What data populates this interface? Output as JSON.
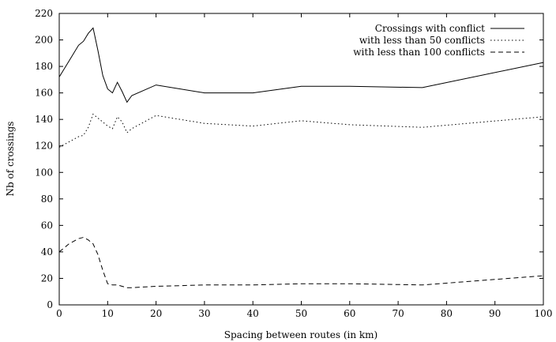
{
  "chart_data": {
    "type": "line",
    "xlabel": "Spacing between routes (in km)",
    "ylabel": "Nb of crossings",
    "xlim": [
      0,
      100
    ],
    "ylim": [
      0,
      220
    ],
    "xticks": [
      0,
      10,
      20,
      30,
      40,
      50,
      60,
      70,
      80,
      90,
      100
    ],
    "yticks": [
      0,
      20,
      40,
      60,
      80,
      100,
      120,
      140,
      160,
      180,
      200,
      220
    ],
    "grid": false,
    "legend_position": "top-right",
    "series": [
      {
        "name": "Crossings with conflict",
        "style": "solid",
        "x": [
          0,
          2,
          4,
          5,
          6,
          7,
          8,
          9,
          10,
          11,
          12,
          13,
          14,
          15,
          20,
          30,
          40,
          50,
          60,
          75,
          100
        ],
        "y": [
          172,
          184,
          196,
          199,
          205,
          209,
          192,
          173,
          163,
          160,
          168,
          161,
          153,
          158,
          166,
          160,
          160,
          165,
          165,
          164,
          183
        ]
      },
      {
        "name": "with less than 50 conflicts",
        "style": "dotted",
        "x": [
          0,
          2,
          4,
          5,
          6,
          7,
          8,
          9,
          10,
          11,
          12,
          13,
          14,
          15,
          20,
          30,
          40,
          50,
          60,
          75,
          100
        ],
        "y": [
          119,
          123,
          127,
          128,
          134,
          144,
          141,
          138,
          135,
          133,
          142,
          138,
          130,
          133,
          143,
          137,
          135,
          139,
          136,
          134,
          142
        ]
      },
      {
        "name": "with less than 100 conflicts",
        "style": "dashed",
        "x": [
          0,
          2,
          4,
          5,
          6,
          7,
          8,
          9,
          10,
          11,
          12,
          13,
          14,
          15,
          20,
          30,
          40,
          50,
          60,
          75,
          100
        ],
        "y": [
          40,
          46,
          50,
          51,
          49,
          46,
          38,
          26,
          16,
          15,
          15,
          14,
          13,
          13,
          14,
          15,
          15,
          16,
          16,
          15,
          22
        ]
      }
    ]
  }
}
